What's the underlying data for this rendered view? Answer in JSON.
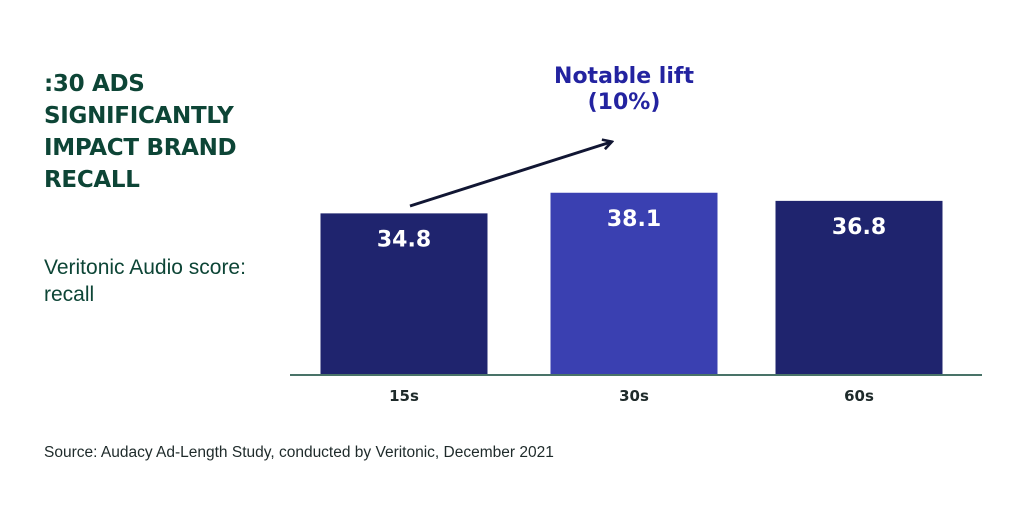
{
  "headline": ":30 ADS SIGNIFICANTLY IMPACT BRAND RECALL",
  "subtitle": "Veritonic Audio score: recall",
  "source": "Source: Audacy Ad-Length Study, conducted by Veritonic, December 2021",
  "annotation": {
    "line1": "Notable lift",
    "line2": "(10%)"
  },
  "colors": {
    "bar": "#1f246e",
    "highlight_bar": "#3a40b1",
    "annotation": "#2323a0",
    "heading": "#0d4536",
    "baseline": "#0d4536"
  },
  "chart_data": {
    "type": "bar",
    "categories": [
      "15s",
      "30s",
      "60s"
    ],
    "values": [
      34.8,
      38.1,
      36.8
    ],
    "highlight": "30s",
    "data_labels": [
      "34.8",
      "38.1",
      "36.8"
    ],
    "xlabel": "",
    "ylabel": "",
    "grid": false
  }
}
